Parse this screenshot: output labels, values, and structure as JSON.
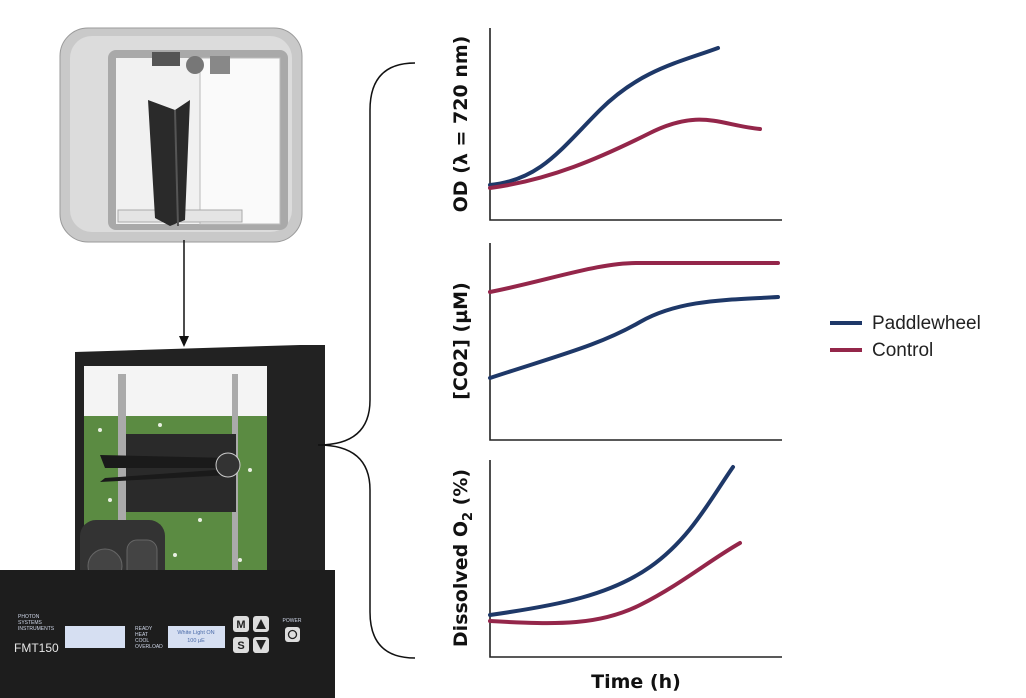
{
  "panels": [
    {
      "ylabel": {
        "text": "OD (λ = 720 nm)"
      }
    },
    {
      "ylabel": {
        "text": "[CO2] (µM)"
      }
    },
    {
      "ylabel": {
        "text": "Dissolved O",
        "subscript": "2",
        "suffix": " (%)"
      }
    }
  ],
  "xlabel": "Time (h)",
  "legend": [
    {
      "label": "Paddlewheel",
      "color": "#1e3868"
    },
    {
      "label": "Control",
      "color": "#94264a"
    }
  ],
  "device": {
    "brand": [
      "PHOTON",
      "SYSTEMS",
      "INSTRUMENTS"
    ],
    "model": "FMT150",
    "display": [
      "White Light ON",
      "100 µE"
    ],
    "status": [
      "READY",
      "HEAT",
      "COOL",
      "OVERLOAD"
    ],
    "buttons": [
      "M",
      "S"
    ],
    "power": "POWER"
  }
}
